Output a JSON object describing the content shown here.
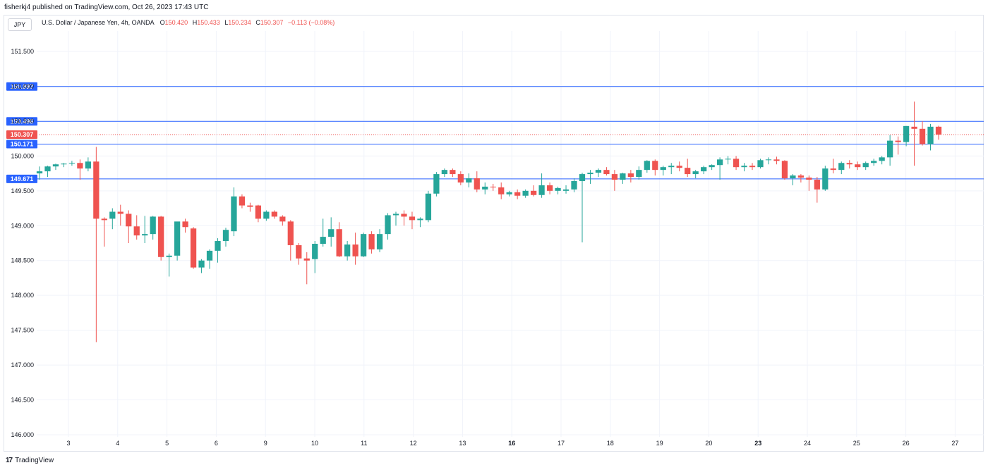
{
  "header": {
    "published": "fisherkj4 published on TradingView.com, Oct 26, 2023 17:43 UTC"
  },
  "symbol_box": "JPY",
  "legend": {
    "title": "U.S. Dollar / Japanese Yen, 4h, OANDA",
    "open_label": "O",
    "open": "150.420",
    "high_label": "H",
    "high": "150.433",
    "low_label": "L",
    "low": "150.234",
    "close_label": "C",
    "close": "150.307",
    "change": "−0.113 (−0.08%)"
  },
  "footer": {
    "logo": "17",
    "brand": "TradingView"
  },
  "colors": {
    "up": "#26a69a",
    "down": "#ef5350",
    "hline": "#2962ff",
    "current": "#ef5350",
    "grid": "#f0f3fa"
  },
  "chart_data": {
    "type": "candlestick",
    "ylim": [
      146.0,
      151.75
    ],
    "y_ticks": [
      "151.500",
      "151.000",
      "150.500",
      "150.000",
      "149.500",
      "149.000",
      "148.500",
      "148.000",
      "147.500",
      "147.000",
      "146.500",
      "146.000"
    ],
    "x_ticks": [
      {
        "label": "3",
        "bold": false
      },
      {
        "label": "4",
        "bold": false
      },
      {
        "label": "5",
        "bold": false
      },
      {
        "label": "6",
        "bold": false
      },
      {
        "label": "9",
        "bold": false
      },
      {
        "label": "10",
        "bold": false
      },
      {
        "label": "11",
        "bold": false
      },
      {
        "label": "12",
        "bold": false
      },
      {
        "label": "13",
        "bold": false
      },
      {
        "label": "16",
        "bold": true
      },
      {
        "label": "17",
        "bold": false
      },
      {
        "label": "18",
        "bold": false
      },
      {
        "label": "19",
        "bold": false
      },
      {
        "label": "20",
        "bold": false
      },
      {
        "label": "23",
        "bold": true
      },
      {
        "label": "24",
        "bold": false
      },
      {
        "label": "25",
        "bold": false
      },
      {
        "label": "26",
        "bold": false
      },
      {
        "label": "27",
        "bold": false
      }
    ],
    "horizontal_levels": [
      {
        "value": 150.997,
        "label": "150.997"
      },
      {
        "value": 150.496,
        "label": "150.496"
      },
      {
        "value": 150.171,
        "label": "150.171"
      },
      {
        "value": 149.671,
        "label": "149.671"
      }
    ],
    "current_price": {
      "value": 150.307,
      "label": "150.307"
    },
    "candles": [
      {
        "o": 149.75,
        "h": 149.85,
        "l": 149.66,
        "c": 149.78
      },
      {
        "o": 149.78,
        "h": 149.86,
        "l": 149.7,
        "c": 149.85
      },
      {
        "o": 149.85,
        "h": 149.89,
        "l": 149.8,
        "c": 149.88
      },
      {
        "o": 149.88,
        "h": 149.9,
        "l": 149.84,
        "c": 149.89
      },
      {
        "o": 149.89,
        "h": 149.93,
        "l": 149.86,
        "c": 149.9
      },
      {
        "o": 149.9,
        "h": 149.95,
        "l": 149.66,
        "c": 149.82
      },
      {
        "o": 149.82,
        "h": 149.98,
        "l": 149.78,
        "c": 149.92
      },
      {
        "o": 149.92,
        "h": 150.13,
        "l": 147.33,
        "c": 149.1
      },
      {
        "o": 149.1,
        "h": 149.12,
        "l": 148.7,
        "c": 149.08
      },
      {
        "o": 149.1,
        "h": 149.25,
        "l": 148.95,
        "c": 149.2
      },
      {
        "o": 149.2,
        "h": 149.3,
        "l": 149.0,
        "c": 149.17
      },
      {
        "o": 149.17,
        "h": 149.22,
        "l": 148.75,
        "c": 148.99
      },
      {
        "o": 148.99,
        "h": 149.15,
        "l": 148.8,
        "c": 148.86
      },
      {
        "o": 148.86,
        "h": 149.14,
        "l": 148.75,
        "c": 148.88
      },
      {
        "o": 148.88,
        "h": 149.14,
        "l": 148.8,
        "c": 149.13
      },
      {
        "o": 149.13,
        "h": 149.14,
        "l": 148.5,
        "c": 148.55
      },
      {
        "o": 148.55,
        "h": 148.6,
        "l": 148.27,
        "c": 148.57
      },
      {
        "o": 148.57,
        "h": 149.05,
        "l": 148.5,
        "c": 149.06
      },
      {
        "o": 149.06,
        "h": 149.1,
        "l": 148.9,
        "c": 148.98
      },
      {
        "o": 148.96,
        "h": 148.98,
        "l": 148.38,
        "c": 148.4
      },
      {
        "o": 148.4,
        "h": 148.52,
        "l": 148.32,
        "c": 148.5
      },
      {
        "o": 148.5,
        "h": 148.66,
        "l": 148.38,
        "c": 148.64
      },
      {
        "o": 148.64,
        "h": 148.82,
        "l": 148.47,
        "c": 148.78
      },
      {
        "o": 148.78,
        "h": 148.97,
        "l": 148.7,
        "c": 148.94
      },
      {
        "o": 148.92,
        "h": 149.55,
        "l": 148.85,
        "c": 149.42
      },
      {
        "o": 149.42,
        "h": 149.45,
        "l": 149.25,
        "c": 149.29
      },
      {
        "o": 149.29,
        "h": 149.33,
        "l": 149.2,
        "c": 149.27
      },
      {
        "o": 149.29,
        "h": 149.3,
        "l": 149.05,
        "c": 149.1
      },
      {
        "o": 149.1,
        "h": 149.22,
        "l": 149.07,
        "c": 149.2
      },
      {
        "o": 149.2,
        "h": 149.22,
        "l": 149.1,
        "c": 149.13
      },
      {
        "o": 149.13,
        "h": 149.15,
        "l": 149.0,
        "c": 149.06
      },
      {
        "o": 149.06,
        "h": 149.08,
        "l": 148.5,
        "c": 148.72
      },
      {
        "o": 148.72,
        "h": 148.75,
        "l": 148.44,
        "c": 148.53
      },
      {
        "o": 148.53,
        "h": 148.62,
        "l": 148.16,
        "c": 148.5
      },
      {
        "o": 148.52,
        "h": 148.78,
        "l": 148.32,
        "c": 148.74
      },
      {
        "o": 148.74,
        "h": 149.1,
        "l": 148.7,
        "c": 148.84
      },
      {
        "o": 148.84,
        "h": 149.12,
        "l": 148.7,
        "c": 148.95
      },
      {
        "o": 148.95,
        "h": 149.05,
        "l": 148.55,
        "c": 148.56
      },
      {
        "o": 148.56,
        "h": 148.78,
        "l": 148.5,
        "c": 148.73
      },
      {
        "o": 148.73,
        "h": 148.9,
        "l": 148.44,
        "c": 148.56
      },
      {
        "o": 148.56,
        "h": 148.9,
        "l": 148.55,
        "c": 148.88
      },
      {
        "o": 148.88,
        "h": 148.92,
        "l": 148.6,
        "c": 148.66
      },
      {
        "o": 148.66,
        "h": 148.95,
        "l": 148.62,
        "c": 148.88
      },
      {
        "o": 148.88,
        "h": 149.18,
        "l": 148.8,
        "c": 149.15
      },
      {
        "o": 149.15,
        "h": 149.2,
        "l": 149.0,
        "c": 149.17
      },
      {
        "o": 149.17,
        "h": 149.22,
        "l": 149.0,
        "c": 149.13
      },
      {
        "o": 149.13,
        "h": 149.2,
        "l": 148.95,
        "c": 149.08
      },
      {
        "o": 149.08,
        "h": 149.12,
        "l": 148.98,
        "c": 149.1
      },
      {
        "o": 149.08,
        "h": 149.5,
        "l": 149.05,
        "c": 149.46
      },
      {
        "o": 149.46,
        "h": 149.77,
        "l": 149.42,
        "c": 149.74
      },
      {
        "o": 149.74,
        "h": 149.82,
        "l": 149.7,
        "c": 149.8
      },
      {
        "o": 149.8,
        "h": 149.82,
        "l": 149.7,
        "c": 149.74
      },
      {
        "o": 149.74,
        "h": 149.78,
        "l": 149.58,
        "c": 149.62
      },
      {
        "o": 149.62,
        "h": 149.75,
        "l": 149.55,
        "c": 149.68
      },
      {
        "o": 149.68,
        "h": 149.78,
        "l": 149.48,
        "c": 149.52
      },
      {
        "o": 149.52,
        "h": 149.62,
        "l": 149.45,
        "c": 149.56
      },
      {
        "o": 149.56,
        "h": 149.6,
        "l": 149.5,
        "c": 149.55
      },
      {
        "o": 149.55,
        "h": 149.62,
        "l": 149.38,
        "c": 149.45
      },
      {
        "o": 149.45,
        "h": 149.5,
        "l": 149.42,
        "c": 149.48
      },
      {
        "o": 149.48,
        "h": 149.52,
        "l": 149.38,
        "c": 149.43
      },
      {
        "o": 149.43,
        "h": 149.52,
        "l": 149.4,
        "c": 149.5
      },
      {
        "o": 149.5,
        "h": 149.58,
        "l": 149.42,
        "c": 149.44
      },
      {
        "o": 149.44,
        "h": 149.75,
        "l": 149.4,
        "c": 149.58
      },
      {
        "o": 149.58,
        "h": 149.62,
        "l": 149.45,
        "c": 149.5
      },
      {
        "o": 149.5,
        "h": 149.56,
        "l": 149.45,
        "c": 149.54
      },
      {
        "o": 149.5,
        "h": 149.58,
        "l": 149.46,
        "c": 149.52
      },
      {
        "o": 149.52,
        "h": 149.68,
        "l": 149.48,
        "c": 149.64
      },
      {
        "o": 149.64,
        "h": 149.76,
        "l": 148.76,
        "c": 149.74
      },
      {
        "o": 149.74,
        "h": 149.8,
        "l": 149.6,
        "c": 149.76
      },
      {
        "o": 149.76,
        "h": 149.82,
        "l": 149.7,
        "c": 149.8
      },
      {
        "o": 149.8,
        "h": 149.84,
        "l": 149.72,
        "c": 149.74
      },
      {
        "o": 149.74,
        "h": 149.8,
        "l": 149.5,
        "c": 149.66
      },
      {
        "o": 149.66,
        "h": 149.76,
        "l": 149.6,
        "c": 149.75
      },
      {
        "o": 149.75,
        "h": 149.8,
        "l": 149.62,
        "c": 149.7
      },
      {
        "o": 149.7,
        "h": 149.85,
        "l": 149.66,
        "c": 149.8
      },
      {
        "o": 149.8,
        "h": 149.94,
        "l": 149.76,
        "c": 149.93
      },
      {
        "o": 149.93,
        "h": 149.95,
        "l": 149.72,
        "c": 149.8
      },
      {
        "o": 149.8,
        "h": 149.86,
        "l": 149.72,
        "c": 149.84
      },
      {
        "o": 149.84,
        "h": 149.9,
        "l": 149.74,
        "c": 149.86
      },
      {
        "o": 149.86,
        "h": 149.92,
        "l": 149.78,
        "c": 149.83
      },
      {
        "o": 149.83,
        "h": 149.96,
        "l": 149.7,
        "c": 149.74
      },
      {
        "o": 149.74,
        "h": 149.8,
        "l": 149.68,
        "c": 149.78
      },
      {
        "o": 149.78,
        "h": 149.86,
        "l": 149.74,
        "c": 149.84
      },
      {
        "o": 149.84,
        "h": 149.88,
        "l": 149.8,
        "c": 149.87
      },
      {
        "o": 149.87,
        "h": 149.98,
        "l": 149.66,
        "c": 149.95
      },
      {
        "o": 149.95,
        "h": 150.0,
        "l": 149.88,
        "c": 149.96
      },
      {
        "o": 149.96,
        "h": 150.0,
        "l": 149.8,
        "c": 149.84
      },
      {
        "o": 149.84,
        "h": 149.9,
        "l": 149.78,
        "c": 149.86
      },
      {
        "o": 149.86,
        "h": 149.9,
        "l": 149.8,
        "c": 149.84
      },
      {
        "o": 149.84,
        "h": 149.96,
        "l": 149.82,
        "c": 149.94
      },
      {
        "o": 149.94,
        "h": 149.98,
        "l": 149.88,
        "c": 149.95
      },
      {
        "o": 149.95,
        "h": 149.99,
        "l": 149.88,
        "c": 149.93
      },
      {
        "o": 149.93,
        "h": 149.94,
        "l": 149.66,
        "c": 149.68
      },
      {
        "o": 149.68,
        "h": 149.74,
        "l": 149.58,
        "c": 149.72
      },
      {
        "o": 149.72,
        "h": 149.74,
        "l": 149.62,
        "c": 149.69
      },
      {
        "o": 149.69,
        "h": 149.72,
        "l": 149.5,
        "c": 149.66
      },
      {
        "o": 149.66,
        "h": 149.7,
        "l": 149.33,
        "c": 149.52
      },
      {
        "o": 149.52,
        "h": 149.86,
        "l": 149.5,
        "c": 149.82
      },
      {
        "o": 149.82,
        "h": 149.96,
        "l": 149.75,
        "c": 149.8
      },
      {
        "o": 149.8,
        "h": 149.92,
        "l": 149.74,
        "c": 149.9
      },
      {
        "o": 149.9,
        "h": 149.94,
        "l": 149.82,
        "c": 149.88
      },
      {
        "o": 149.88,
        "h": 149.92,
        "l": 149.8,
        "c": 149.84
      },
      {
        "o": 149.84,
        "h": 149.92,
        "l": 149.8,
        "c": 149.9
      },
      {
        "o": 149.9,
        "h": 149.96,
        "l": 149.86,
        "c": 149.93
      },
      {
        "o": 149.93,
        "h": 150.0,
        "l": 149.88,
        "c": 149.98
      },
      {
        "o": 149.98,
        "h": 150.3,
        "l": 149.86,
        "c": 150.22
      },
      {
        "o": 150.22,
        "h": 150.28,
        "l": 150.02,
        "c": 150.2
      },
      {
        "o": 150.2,
        "h": 150.43,
        "l": 150.14,
        "c": 150.43
      },
      {
        "o": 150.42,
        "h": 150.78,
        "l": 149.86,
        "c": 150.39
      },
      {
        "o": 150.39,
        "h": 150.5,
        "l": 150.15,
        "c": 150.17
      },
      {
        "o": 150.17,
        "h": 150.46,
        "l": 150.08,
        "c": 150.42
      },
      {
        "o": 150.42,
        "h": 150.433,
        "l": 150.234,
        "c": 150.307
      }
    ]
  }
}
